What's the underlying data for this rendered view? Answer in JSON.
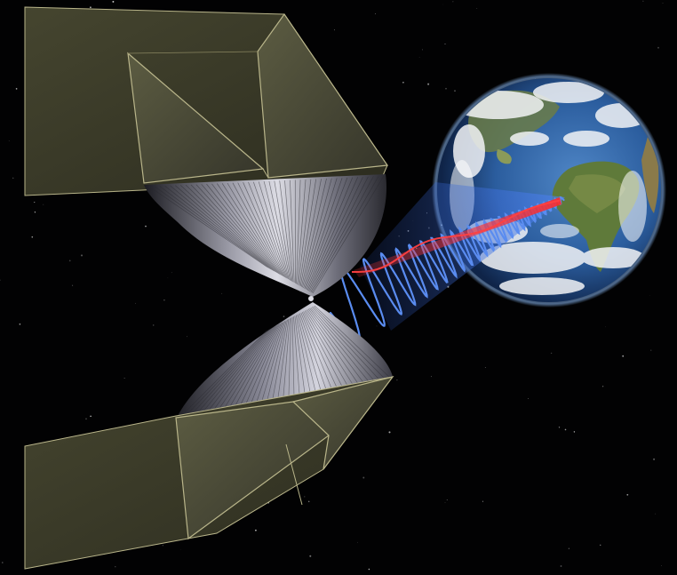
{
  "scene": {
    "subject": "space-solar-power-satellite",
    "elements": [
      "solar-collector-panels",
      "concentrator-reflectors",
      "microwave-beam",
      "laser-beam",
      "earth"
    ]
  },
  "colors": {
    "space": "#020203",
    "panel_fill": "#3a3a28",
    "panel_fill_light": "#5a5a40",
    "panel_edge": "#b9b58a",
    "reflector_dark": "#1a1a1c",
    "reflector_light": "#c8c8d0",
    "microwave_beam": "#3b6fd8",
    "microwave_wave": "#5a8cf0",
    "laser_beam": "#e0262a",
    "ocean": "#2b5d9e",
    "land": "#5f7a3a",
    "cloud": "#f2f4f6"
  },
  "icons": {
    "earth": "earth-globe-icon",
    "satellite": "solar-satellite-icon"
  }
}
